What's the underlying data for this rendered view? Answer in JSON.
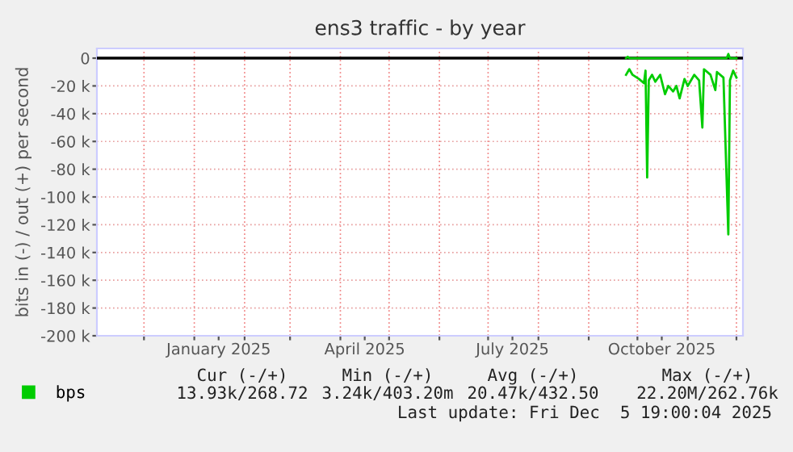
{
  "chart_data": {
    "type": "line",
    "title": "ens3 traffic - by year",
    "ylabel": "bits in (-) / out (+) per second",
    "series": [
      {
        "name": "bps",
        "color": "#00cc00",
        "x": [
          "2025-09-24",
          "2025-09-26",
          "2025-09-28",
          "2025-10-02",
          "2025-10-05",
          "2025-10-06",
          "2025-10-07",
          "2025-10-08",
          "2025-10-10",
          "2025-10-12",
          "2025-10-15",
          "2025-10-18",
          "2025-10-20",
          "2025-10-23",
          "2025-10-25",
          "2025-10-27",
          "2025-10-30",
          "2025-11-01",
          "2025-11-05",
          "2025-11-08",
          "2025-11-10",
          "2025-11-11",
          "2025-11-15",
          "2025-11-18",
          "2025-11-19",
          "2025-11-23",
          "2025-11-26",
          "2025-11-27",
          "2025-11-29",
          "2025-12-01"
        ],
        "values": [
          -12000,
          -8000,
          -12000,
          -15000,
          -18000,
          -9000,
          -86000,
          -16000,
          -12000,
          -17000,
          -12000,
          -26000,
          -20000,
          -24000,
          -20000,
          -29000,
          -15000,
          -20000,
          -12000,
          -16000,
          -50000,
          -8000,
          -12000,
          -23000,
          -10000,
          -14000,
          -127000,
          -16000,
          -9000,
          -14000
        ]
      },
      {
        "color": "#00cc00",
        "x": [
          "2025-09-24",
          "2025-09-25",
          "2025-09-26",
          "2025-11-25",
          "2025-11-26",
          "2025-11-27",
          "2025-12-01"
        ],
        "values": [
          0,
          1000,
          0,
          0,
          3000,
          0,
          0
        ]
      }
    ],
    "ref_lines": [
      {
        "axis": "y",
        "value": 0,
        "color": "#000000"
      }
    ],
    "xlim": [
      "2024-11-02",
      "2025-12-05"
    ],
    "xticks": [
      {
        "value": "2024-12-01",
        "label": null
      },
      {
        "value": "2025-01-01",
        "label": null
      },
      {
        "value": "2025-01-16",
        "label": "January 2025"
      },
      {
        "value": "2025-02-01",
        "label": null
      },
      {
        "value": "2025-03-01",
        "label": null
      },
      {
        "value": "2025-04-01",
        "label": null
      },
      {
        "value": "2025-04-16",
        "label": "April 2025"
      },
      {
        "value": "2025-05-01",
        "label": null
      },
      {
        "value": "2025-06-01",
        "label": null
      },
      {
        "value": "2025-07-01",
        "label": null
      },
      {
        "value": "2025-07-16",
        "label": "July 2025"
      },
      {
        "value": "2025-08-01",
        "label": null
      },
      {
        "value": "2025-09-01",
        "label": null
      },
      {
        "value": "2025-10-01",
        "label": null
      },
      {
        "value": "2025-10-16",
        "label": "October 2025"
      },
      {
        "value": "2025-11-01",
        "label": null
      },
      {
        "value": "2025-12-01",
        "label": null
      }
    ],
    "ylim": [
      -200000,
      7000
    ],
    "yticks": [
      0,
      {
        "value": -20000,
        "label": "-20 k"
      },
      {
        "value": -40000,
        "label": "-40 k"
      },
      {
        "value": -60000,
        "label": "-60 k"
      },
      {
        "value": -80000,
        "label": "-80 k"
      },
      {
        "value": -100000,
        "label": "-100 k"
      },
      {
        "value": -120000,
        "label": "-120 k"
      },
      {
        "value": -140000,
        "label": "-140 k"
      },
      {
        "value": -160000,
        "label": "-160 k"
      },
      {
        "value": -180000,
        "label": "-180 k"
      },
      {
        "value": -200000,
        "label": "-200 k"
      }
    ],
    "grid": true,
    "legend": "bottom left",
    "marker": "none",
    "line_style": "solid",
    "annotations": [
      "Cur (-/+)",
      "Min (-/+)",
      "Avg (-/+)",
      "Max (-/+)",
      "13.93k/268.72",
      "3.24k/403.20m",
      "20.47k/432.50",
      "22.20M/262.76k",
      "Last update: Fri Dec  5 19:00:04 2025"
    ]
  }
}
